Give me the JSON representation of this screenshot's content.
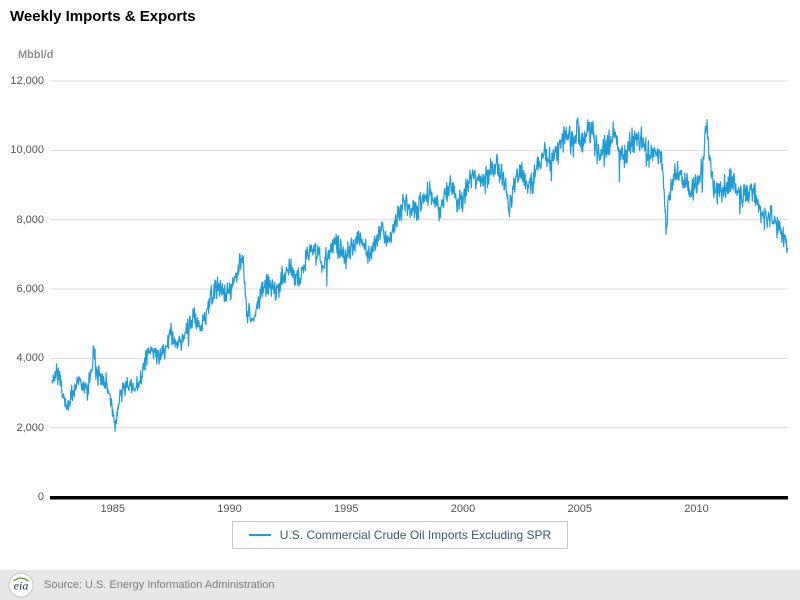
{
  "header": {
    "title": "Weekly Imports & Exports"
  },
  "chart_data": {
    "type": "line",
    "title": "Weekly Imports & Exports",
    "unit_label": "Mbbl/d",
    "x_range": [
      1982.4,
      2013.92
    ],
    "y_range": [
      0,
      12000
    ],
    "grid": "horizontal",
    "legend_position": "bottom-center",
    "y_ticks": {
      "values": [
        0,
        2000,
        4000,
        6000,
        8000,
        10000,
        12000
      ],
      "labels": [
        "0",
        "2,000",
        "4,000",
        "6,000",
        "8,000",
        "10,000",
        "12,000"
      ]
    },
    "x_ticks": {
      "values": [
        1985,
        1990,
        1995,
        2000,
        2005,
        2010
      ],
      "labels": [
        "1985",
        "1990",
        "1995",
        "2000",
        "2005",
        "2010"
      ]
    },
    "series": [
      {
        "name": "U.S. Commercial Crude Oil Imports Excluding SPR",
        "color": "#1e9cd7",
        "frequency": "weekly",
        "jitter": 480,
        "anchors": [
          [
            1982.4,
            3300
          ],
          [
            1982.6,
            3600
          ],
          [
            1982.8,
            3200
          ],
          [
            1983.0,
            2600
          ],
          [
            1983.2,
            2900
          ],
          [
            1983.4,
            3200
          ],
          [
            1983.6,
            3400
          ],
          [
            1983.8,
            3100
          ],
          [
            1984.0,
            3300
          ],
          [
            1984.2,
            4300
          ],
          [
            1984.35,
            3500
          ],
          [
            1984.6,
            3400
          ],
          [
            1984.8,
            3200
          ],
          [
            1985.0,
            2500
          ],
          [
            1985.1,
            2100
          ],
          [
            1985.3,
            2800
          ],
          [
            1985.5,
            3100
          ],
          [
            1985.75,
            3200
          ],
          [
            1986.0,
            3100
          ],
          [
            1986.25,
            3600
          ],
          [
            1986.5,
            4200
          ],
          [
            1986.75,
            4300
          ],
          [
            1987.0,
            4000
          ],
          [
            1987.25,
            4300
          ],
          [
            1987.5,
            4700
          ],
          [
            1987.75,
            4400
          ],
          [
            1988.0,
            4600
          ],
          [
            1988.25,
            5000
          ],
          [
            1988.5,
            5200
          ],
          [
            1988.75,
            4900
          ],
          [
            1989.0,
            5300
          ],
          [
            1989.25,
            5900
          ],
          [
            1989.5,
            6100
          ],
          [
            1989.75,
            5800
          ],
          [
            1990.0,
            6000
          ],
          [
            1990.25,
            6300
          ],
          [
            1990.55,
            7000
          ],
          [
            1990.75,
            5400
          ],
          [
            1991.0,
            5000
          ],
          [
            1991.25,
            5700
          ],
          [
            1991.5,
            6300
          ],
          [
            1991.75,
            6100
          ],
          [
            1992.0,
            5900
          ],
          [
            1992.25,
            6300
          ],
          [
            1992.5,
            6600
          ],
          [
            1992.75,
            6400
          ],
          [
            1993.0,
            6300
          ],
          [
            1993.25,
            6900
          ],
          [
            1993.5,
            7200
          ],
          [
            1993.75,
            7000
          ],
          [
            1994.0,
            6700
          ],
          [
            1994.25,
            7100
          ],
          [
            1994.5,
            7400
          ],
          [
            1994.75,
            7100
          ],
          [
            1995.0,
            6900
          ],
          [
            1995.25,
            7300
          ],
          [
            1995.5,
            7500
          ],
          [
            1995.75,
            7200
          ],
          [
            1996.0,
            7000
          ],
          [
            1996.25,
            7400
          ],
          [
            1996.5,
            7700
          ],
          [
            1996.75,
            7500
          ],
          [
            1997.0,
            7600
          ],
          [
            1997.25,
            8200
          ],
          [
            1997.5,
            8500
          ],
          [
            1997.75,
            8300
          ],
          [
            1998.0,
            8200
          ],
          [
            1998.25,
            8600
          ],
          [
            1998.5,
            8800
          ],
          [
            1998.75,
            8500
          ],
          [
            1999.0,
            8300
          ],
          [
            1999.25,
            8700
          ],
          [
            1999.5,
            8900
          ],
          [
            1999.75,
            8500
          ],
          [
            2000.0,
            8700
          ],
          [
            2000.25,
            9100
          ],
          [
            2000.5,
            9300
          ],
          [
            2000.75,
            9100
          ],
          [
            2001.0,
            9100
          ],
          [
            2001.25,
            9500
          ],
          [
            2001.5,
            9600
          ],
          [
            2001.75,
            9200
          ],
          [
            2002.0,
            8300
          ],
          [
            2002.25,
            9100
          ],
          [
            2002.5,
            9400
          ],
          [
            2002.75,
            9100
          ],
          [
            2003.0,
            9000
          ],
          [
            2003.25,
            9700
          ],
          [
            2003.5,
            9900
          ],
          [
            2003.75,
            9700
          ],
          [
            2004.0,
            9900
          ],
          [
            2004.25,
            10300
          ],
          [
            2004.5,
            10500
          ],
          [
            2004.75,
            10200
          ],
          [
            2004.9,
            10900
          ],
          [
            2005.0,
            10100
          ],
          [
            2005.25,
            10400
          ],
          [
            2005.5,
            10600
          ],
          [
            2005.75,
            10000
          ],
          [
            2006.0,
            9900
          ],
          [
            2006.25,
            10300
          ],
          [
            2006.5,
            10500
          ],
          [
            2006.75,
            10000
          ],
          [
            2007.0,
            9900
          ],
          [
            2007.25,
            10300
          ],
          [
            2007.5,
            10400
          ],
          [
            2007.75,
            10100
          ],
          [
            2008.0,
            9800
          ],
          [
            2008.25,
            10000
          ],
          [
            2008.5,
            9900
          ],
          [
            2008.7,
            7900
          ],
          [
            2008.85,
            8800
          ],
          [
            2009.0,
            9200
          ],
          [
            2009.25,
            9400
          ],
          [
            2009.5,
            9100
          ],
          [
            2009.75,
            8800
          ],
          [
            2010.0,
            9000
          ],
          [
            2010.25,
            9500
          ],
          [
            2010.45,
            10800
          ],
          [
            2010.6,
            9500
          ],
          [
            2010.75,
            8900
          ],
          [
            2011.0,
            8700
          ],
          [
            2011.25,
            9000
          ],
          [
            2011.5,
            9200
          ],
          [
            2011.75,
            8800
          ],
          [
            2012.0,
            8700
          ],
          [
            2012.25,
            8900
          ],
          [
            2012.5,
            8700
          ],
          [
            2012.75,
            8300
          ],
          [
            2013.0,
            7900
          ],
          [
            2013.25,
            8100
          ],
          [
            2013.5,
            7800
          ],
          [
            2013.75,
            7400
          ],
          [
            2013.92,
            7100
          ]
        ]
      }
    ]
  },
  "legend": {
    "items": [
      {
        "label": "U.S. Commercial Crude Oil Imports Excluding SPR",
        "color": "#1e9cd7"
      }
    ]
  },
  "footer": {
    "logo": "eia-logo",
    "source": "Source: U.S. Energy Information Administration"
  }
}
